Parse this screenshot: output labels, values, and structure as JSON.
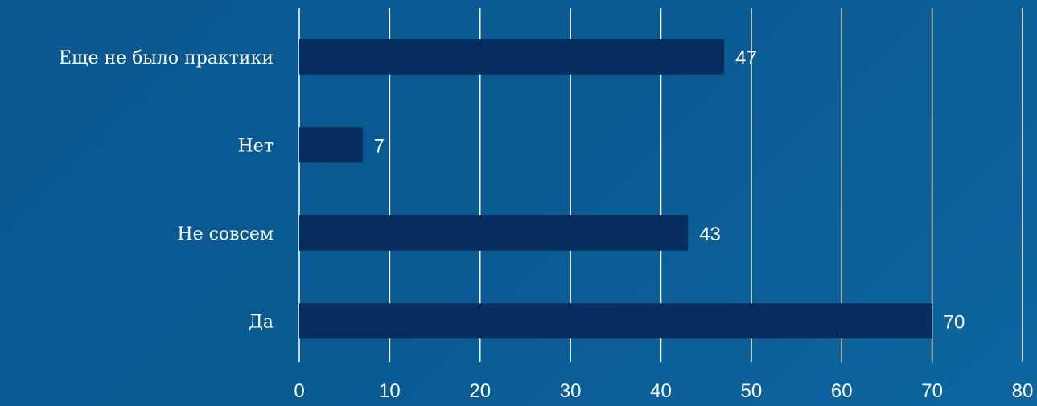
{
  "chart_data": {
    "type": "bar",
    "orientation": "horizontal",
    "categories": [
      "Еще не было практики",
      "Нет",
      "Не совсем",
      "Да"
    ],
    "values": [
      47,
      7,
      43,
      70
    ],
    "xlim": [
      0,
      80
    ],
    "x_ticks": [
      0,
      10,
      20,
      30,
      40,
      50,
      60,
      70,
      80
    ],
    "grid": true,
    "data_labels": true,
    "bar_color": "#062d5d",
    "background_color": "#0a5a92",
    "title": "",
    "xlabel": "",
    "ylabel": ""
  }
}
